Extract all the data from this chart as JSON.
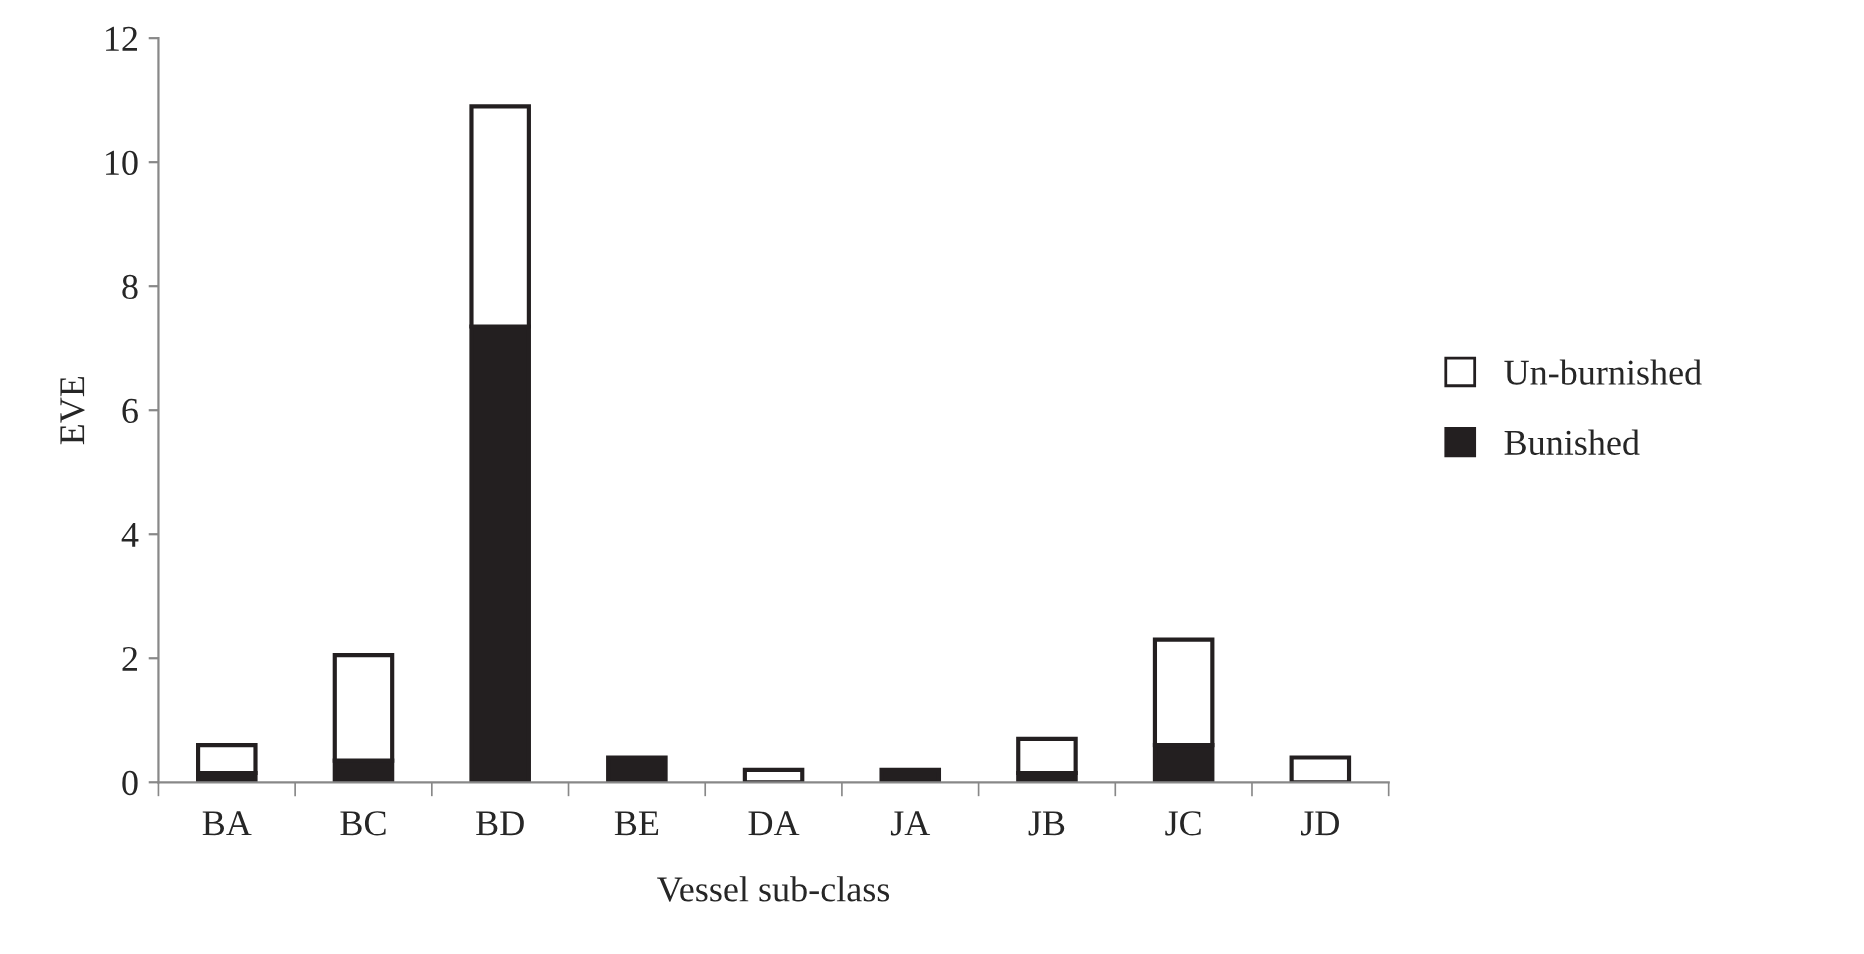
{
  "chart_data": {
    "type": "bar",
    "stacked": true,
    "xlabel": "Vessel sub-class",
    "ylabel": "EVE",
    "categories": [
      "BA",
      "BC",
      "BD",
      "BE",
      "DA",
      "JA",
      "JB",
      "JC",
      "JD"
    ],
    "series": [
      {
        "name": "Bunished",
        "color": "#231f20",
        "values": [
          0.15,
          0.35,
          7.35,
          0.4,
          0,
          0.2,
          0.15,
          0.6,
          0
        ]
      },
      {
        "name": "Un-burnished",
        "color": "#ffffff",
        "values": [
          0.45,
          1.7,
          3.55,
          0,
          0.2,
          0,
          0.55,
          1.7,
          0.4
        ]
      }
    ],
    "ylim": [
      0,
      12
    ],
    "yticks": [
      0,
      2,
      4,
      6,
      8,
      10,
      12
    ],
    "grid": false,
    "legend": "right"
  }
}
